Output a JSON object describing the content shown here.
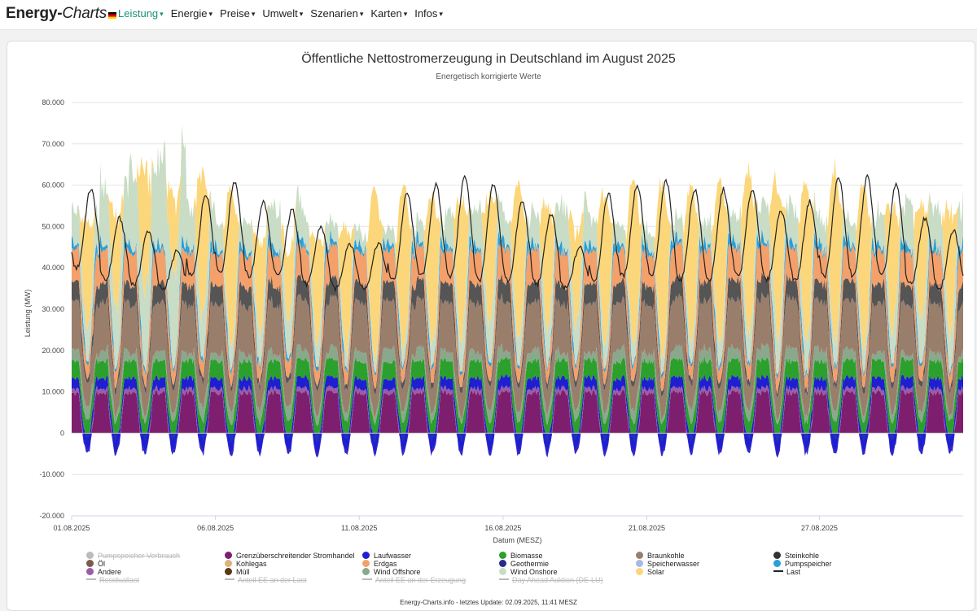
{
  "brand": {
    "part1": "Energy-",
    "part2": "Charts"
  },
  "menu": [
    {
      "label": "Leistung",
      "active": true
    },
    {
      "label": "Energie",
      "active": false
    },
    {
      "label": "Preise",
      "active": false
    },
    {
      "label": "Umwelt",
      "active": false
    },
    {
      "label": "Szenarien",
      "active": false
    },
    {
      "label": "Karten",
      "active": false
    },
    {
      "label": "Infos",
      "active": false
    }
  ],
  "footer": "Energy-Charts.info - letztes Update: 02.09.2025, 11:41 MESZ",
  "chart_data": {
    "type": "area",
    "title": "Öffentliche Nettostromerzeugung in Deutschland im August 2025",
    "subtitle": "Energetisch korrigierte Werte",
    "xlabel": "Datum (MESZ)",
    "ylabel": "Leistung (MW)",
    "ylim": [
      -20000,
      80000
    ],
    "yticks": [
      "80.000",
      "70.000",
      "60.000",
      "50.000",
      "40.000",
      "30.000",
      "20.000",
      "10.000",
      "0",
      "-10.000",
      "-20.000"
    ],
    "xticks": [
      "01.08.2025",
      "06.08.2025",
      "11.08.2025",
      "16.08.2025",
      "21.08.2025",
      "27.08.2025"
    ],
    "xtick_days": [
      1,
      6,
      11,
      16,
      21,
      27
    ],
    "days": 31,
    "daily": {
      "solar_peak": [
        26000,
        22000,
        30000,
        18000,
        35000,
        38000,
        22000,
        16000,
        25000,
        30000,
        42000,
        40000,
        36000,
        34000,
        31000,
        38000,
        30000,
        22000,
        36000,
        40000,
        42000,
        38000,
        40000,
        40000,
        36000,
        38000,
        42000,
        40000,
        30000,
        28000,
        30000
      ],
      "wind_onshore": [
        8000,
        14000,
        18000,
        22000,
        10000,
        6000,
        8000,
        10000,
        6000,
        4000,
        3000,
        4000,
        5000,
        8000,
        10000,
        6000,
        8000,
        10000,
        6000,
        5000,
        4000,
        5000,
        6000,
        7000,
        9000,
        8000,
        6000,
        5000,
        8000,
        10000,
        9000
      ],
      "last_peak": [
        59000,
        52000,
        49000,
        44000,
        58000,
        61000,
        56000,
        54000,
        50000,
        46000,
        46000,
        58000,
        60000,
        62000,
        60000,
        56000,
        53000,
        45000,
        58000,
        60000,
        61000,
        59000,
        59000,
        59000,
        54000,
        56000,
        62000,
        62000,
        60000,
        52000,
        49000
      ],
      "last_min": [
        40000,
        37000,
        36000,
        35000,
        38000,
        39000,
        38000,
        38000,
        36000,
        35000,
        35000,
        37000,
        38000,
        38000,
        37000,
        37000,
        36000,
        35000,
        37000,
        38000,
        38000,
        37000,
        37000,
        38000,
        37000,
        37000,
        38000,
        38000,
        38000,
        36000,
        35000
      ]
    },
    "series": [
      {
        "name": "Grenzüberschreitender Stromhandel",
        "color": "#7d1f6e"
      },
      {
        "name": "Andere",
        "color": "#9c5ba8"
      },
      {
        "name": "Laufwasser",
        "color": "#1f1fd1"
      },
      {
        "name": "Biomasse",
        "color": "#2ca02c"
      },
      {
        "name": "Wind Offshore",
        "color": "#8aa88c"
      },
      {
        "name": "Braunkohle",
        "color": "#9a7e6c"
      },
      {
        "name": "Steinkohle",
        "color": "#555555"
      },
      {
        "name": "Erdgas",
        "color": "#f4a06a"
      },
      {
        "name": "Pumpspeicher",
        "color": "#2a9fd8"
      },
      {
        "name": "Wind Onshore",
        "color": "#c8dcc6"
      },
      {
        "name": "Solar",
        "color": "#fbd67a"
      },
      {
        "name": "Last",
        "color": "#222222"
      }
    ],
    "legend": [
      {
        "name": "Pumpspeicher Verbrauch",
        "color": "#bbbbbb",
        "kind": "dot",
        "off": true
      },
      {
        "name": "Grenzüberschreitender Stromhandel",
        "color": "#7d1f6e",
        "kind": "dot",
        "off": false
      },
      {
        "name": "Laufwasser",
        "color": "#1f1fd1",
        "kind": "dot",
        "off": false
      },
      {
        "name": "Biomasse",
        "color": "#2ca02c",
        "kind": "dot",
        "off": false
      },
      {
        "name": "Braunkohle",
        "color": "#9a7e6c",
        "kind": "dot",
        "off": false
      },
      {
        "name": "Steinkohle",
        "color": "#333333",
        "kind": "dot",
        "off": false
      },
      {
        "name": "Öl",
        "color": "#7a5a4a",
        "kind": "dot",
        "off": false
      },
      {
        "name": "Kohlegas",
        "color": "#d8b47a",
        "kind": "dot",
        "off": false
      },
      {
        "name": "Erdgas",
        "color": "#f4a06a",
        "kind": "dot",
        "off": false
      },
      {
        "name": "Geothermie",
        "color": "#2a2a8a",
        "kind": "dot",
        "off": false
      },
      {
        "name": "Speicherwasser",
        "color": "#aab8e8",
        "kind": "dot",
        "off": false
      },
      {
        "name": "Pumpspeicher",
        "color": "#2a9fd8",
        "kind": "dot",
        "off": false
      },
      {
        "name": "Andere",
        "color": "#9c5ba8",
        "kind": "dot",
        "off": false
      },
      {
        "name": "Müll",
        "color": "#5a3a10",
        "kind": "dot",
        "off": false
      },
      {
        "name": "Wind Offshore",
        "color": "#8aa88c",
        "kind": "dot",
        "off": false
      },
      {
        "name": "Wind Onshore",
        "color": "#c8dcc6",
        "kind": "dot",
        "off": false
      },
      {
        "name": "Solar",
        "color": "#fbd67a",
        "kind": "dot",
        "off": false
      },
      {
        "name": "Last",
        "color": "#222222",
        "kind": "line",
        "off": false
      },
      {
        "name": "Residuallast",
        "color": "#bbbbbb",
        "kind": "line",
        "off": true
      },
      {
        "name": "Anteil EE an der Last",
        "color": "#bbbbbb",
        "kind": "line",
        "off": true
      },
      {
        "name": "Anteil EE an der Erzeugung",
        "color": "#bbbbbb",
        "kind": "line",
        "off": true
      },
      {
        "name": "Day Ahead Auktion (DE-LU)",
        "color": "#bbbbbb",
        "kind": "line",
        "off": true
      }
    ]
  }
}
